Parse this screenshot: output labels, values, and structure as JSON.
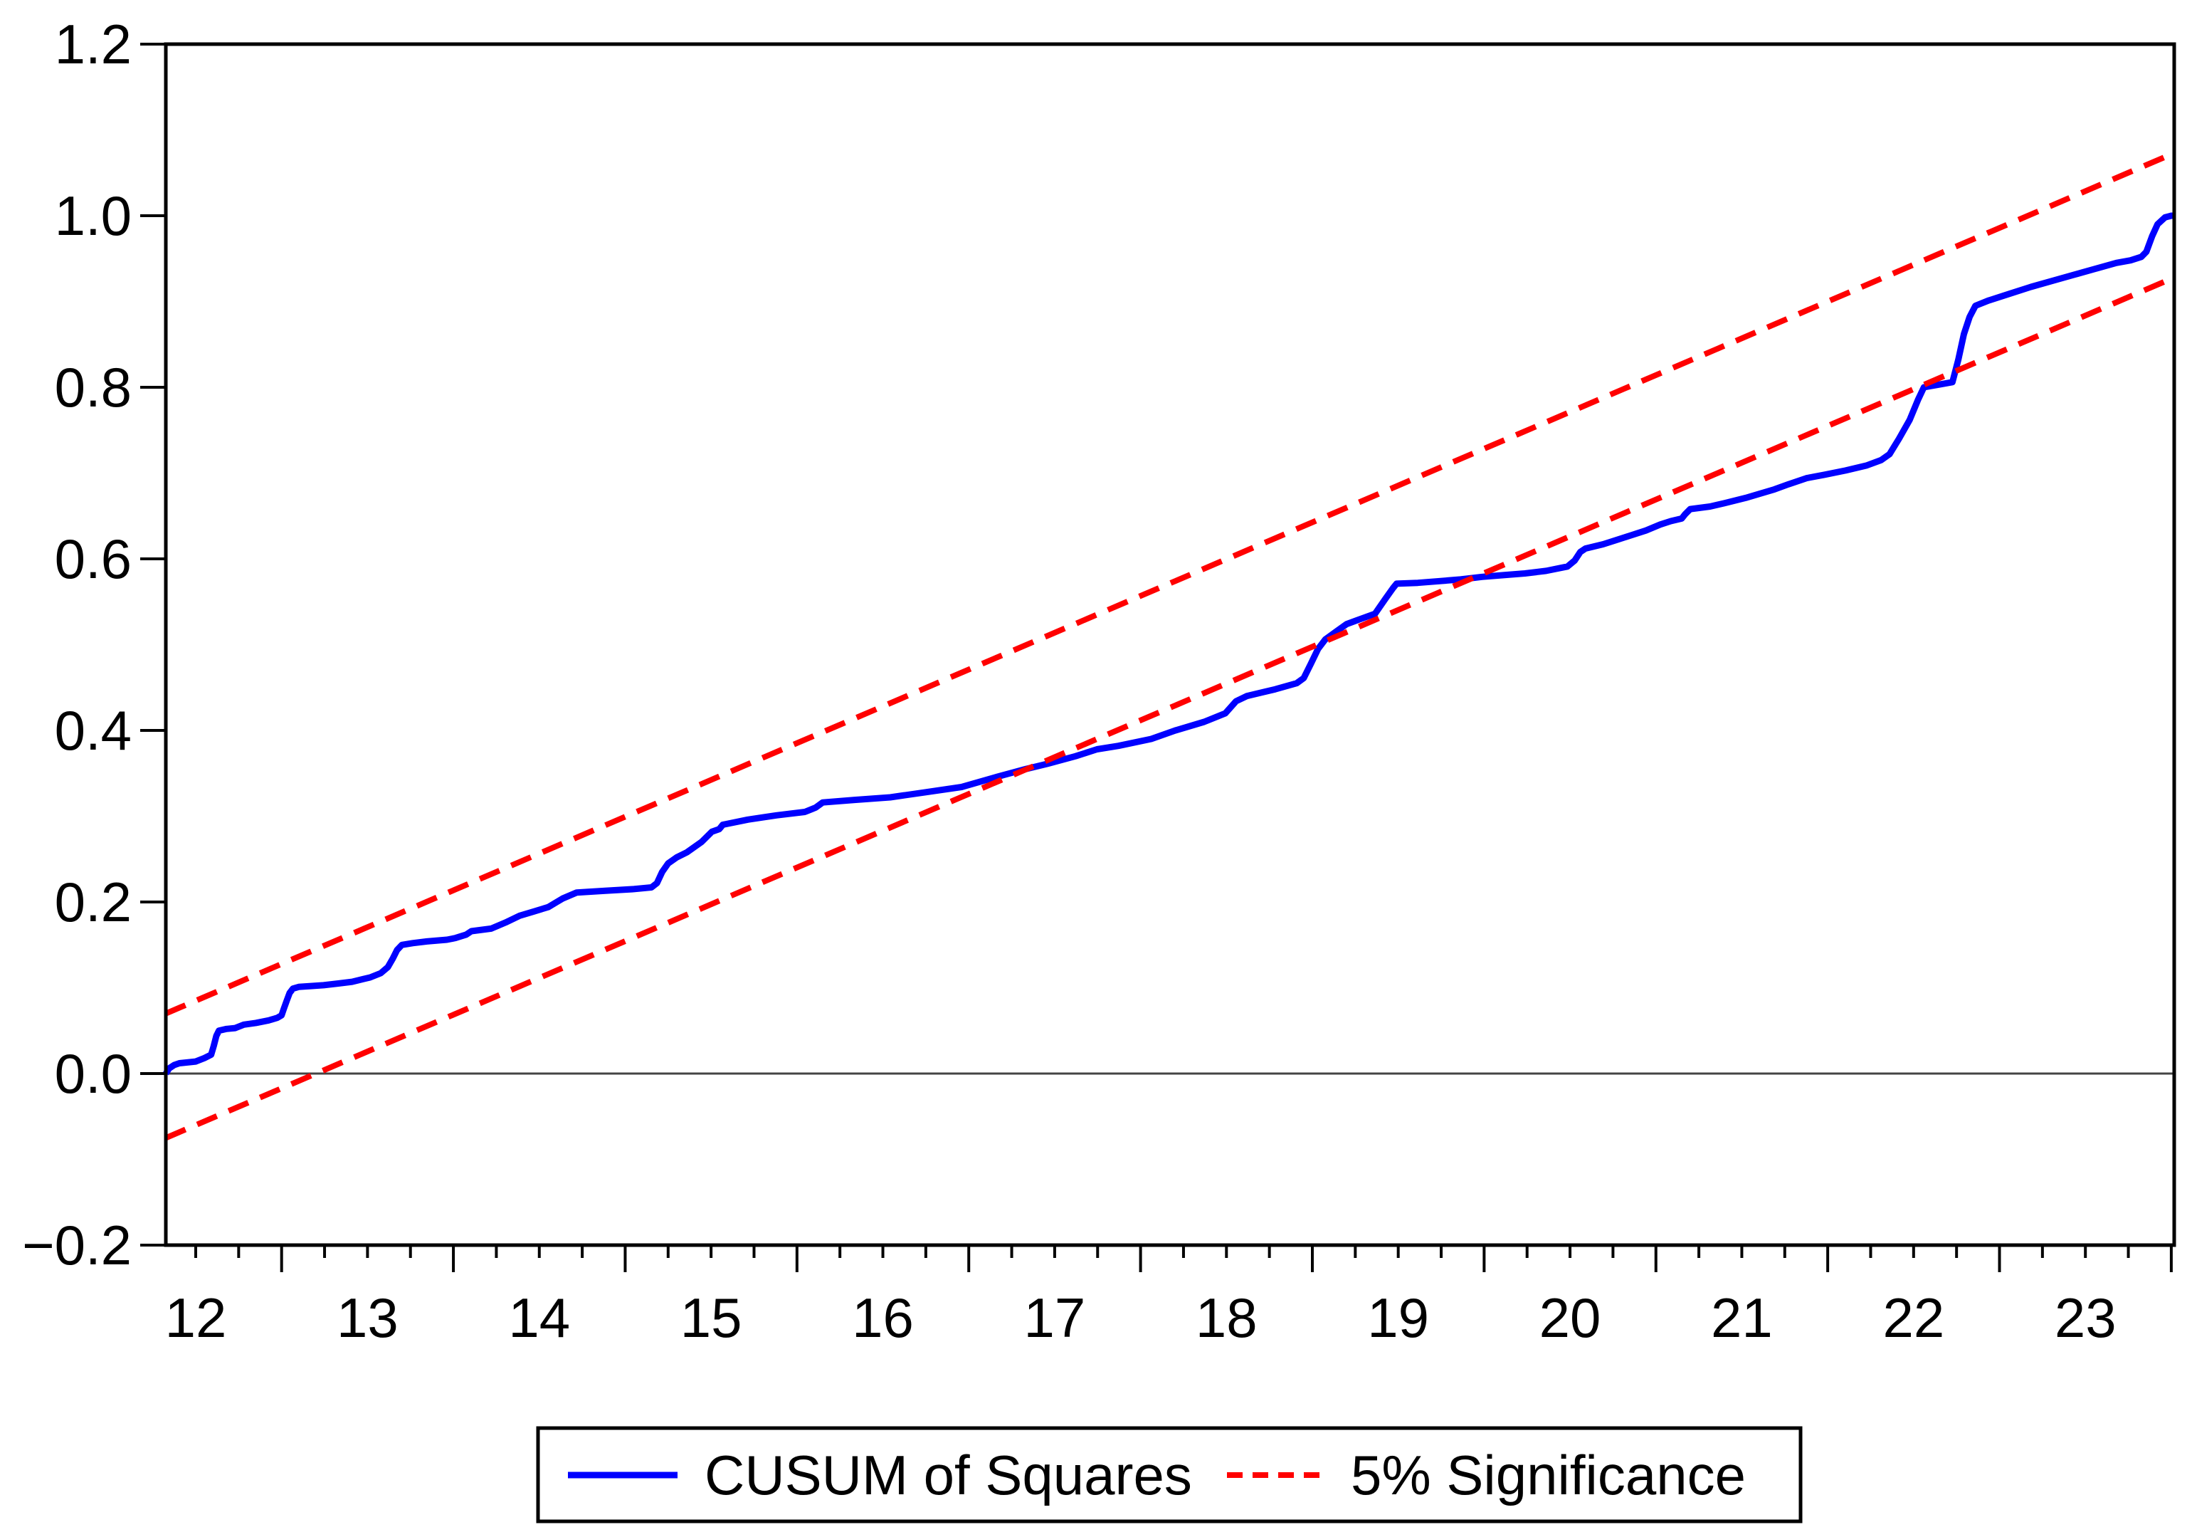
{
  "figure": {
    "background": "#ffffff",
    "border_color": "#000000"
  },
  "chart_data": {
    "type": "line",
    "title": "",
    "xlabel": "",
    "ylabel": "",
    "grid": "off",
    "legend_position": "bottom-outside-boxed",
    "xlim": [
      12.326,
      24.017
    ],
    "ylim": [
      -0.2,
      1.2
    ],
    "zero_line_value": 0.0,
    "y_ticks": [
      {
        "v": 1.2,
        "label": "1.2"
      },
      {
        "v": 1.0,
        "label": "1.0"
      },
      {
        "v": 0.8,
        "label": "0.8"
      },
      {
        "v": 0.6,
        "label": "0.6"
      },
      {
        "v": 0.4,
        "label": "0.4"
      },
      {
        "v": 0.2,
        "label": "0.2"
      },
      {
        "v": 0.0,
        "label": "0.0"
      },
      {
        "v": -0.2,
        "label": "−0.2"
      }
    ],
    "x_major_ticks": [
      13,
      14,
      15,
      16,
      17,
      18,
      19,
      20,
      21,
      22,
      23,
      24
    ],
    "x_minor_ticks": {
      "start": 12.5,
      "end": 23.75,
      "step": 0.25,
      "skip_integers": true
    },
    "x_tick_labels": [
      {
        "t": 12.5,
        "label": "12"
      },
      {
        "t": 13.5,
        "label": "13"
      },
      {
        "t": 14.5,
        "label": "14"
      },
      {
        "t": 15.5,
        "label": "15"
      },
      {
        "t": 16.5,
        "label": "16"
      },
      {
        "t": 17.5,
        "label": "17"
      },
      {
        "t": 18.5,
        "label": "18"
      },
      {
        "t": 19.5,
        "label": "19"
      },
      {
        "t": 20.5,
        "label": "20"
      },
      {
        "t": 21.5,
        "label": "21"
      },
      {
        "t": 22.5,
        "label": "22"
      },
      {
        "t": 23.5,
        "label": "23"
      }
    ],
    "series": [
      {
        "name": "CUSUM of Squares",
        "color": "#0000ff",
        "style": "solid",
        "points": [
          [
            12.326,
            0.0
          ],
          [
            12.345,
            0.006
          ],
          [
            12.375,
            0.01
          ],
          [
            12.405,
            0.012
          ],
          [
            12.5,
            0.014
          ],
          [
            12.55,
            0.018
          ],
          [
            12.59,
            0.022
          ],
          [
            12.605,
            0.032
          ],
          [
            12.62,
            0.044
          ],
          [
            12.635,
            0.05
          ],
          [
            12.68,
            0.052
          ],
          [
            12.73,
            0.053
          ],
          [
            12.78,
            0.057
          ],
          [
            12.85,
            0.059
          ],
          [
            12.925,
            0.062
          ],
          [
            12.975,
            0.065
          ],
          [
            13.0,
            0.068
          ],
          [
            13.012,
            0.075
          ],
          [
            13.03,
            0.085
          ],
          [
            13.047,
            0.094
          ],
          [
            13.066,
            0.099
          ],
          [
            13.1,
            0.101
          ],
          [
            13.17,
            0.102
          ],
          [
            13.245,
            0.103
          ],
          [
            13.33,
            0.105
          ],
          [
            13.41,
            0.107
          ],
          [
            13.473,
            0.11
          ],
          [
            13.515,
            0.112
          ],
          [
            13.577,
            0.117
          ],
          [
            13.618,
            0.124
          ],
          [
            13.647,
            0.134
          ],
          [
            13.672,
            0.144
          ],
          [
            13.7,
            0.15
          ],
          [
            13.763,
            0.152
          ],
          [
            13.846,
            0.154
          ],
          [
            13.963,
            0.156
          ],
          [
            14.012,
            0.158
          ],
          [
            14.075,
            0.162
          ],
          [
            14.105,
            0.166
          ],
          [
            14.22,
            0.169
          ],
          [
            14.303,
            0.176
          ],
          [
            14.386,
            0.184
          ],
          [
            14.469,
            0.189
          ],
          [
            14.552,
            0.194
          ],
          [
            14.635,
            0.204
          ],
          [
            14.718,
            0.211
          ],
          [
            14.884,
            0.213
          ],
          [
            15.05,
            0.215
          ],
          [
            15.153,
            0.217
          ],
          [
            15.185,
            0.222
          ],
          [
            15.215,
            0.235
          ],
          [
            15.25,
            0.245
          ],
          [
            15.3,
            0.252
          ],
          [
            15.36,
            0.258
          ],
          [
            15.445,
            0.27
          ],
          [
            15.505,
            0.282
          ],
          [
            15.548,
            0.285
          ],
          [
            15.568,
            0.29
          ],
          [
            15.714,
            0.296
          ],
          [
            15.88,
            0.301
          ],
          [
            16.046,
            0.305
          ],
          [
            16.108,
            0.31
          ],
          [
            16.15,
            0.316
          ],
          [
            16.336,
            0.319
          ],
          [
            16.543,
            0.322
          ],
          [
            16.75,
            0.328
          ],
          [
            16.958,
            0.334
          ],
          [
            17.166,
            0.346
          ],
          [
            17.332,
            0.355
          ],
          [
            17.456,
            0.361
          ],
          [
            17.622,
            0.37
          ],
          [
            17.747,
            0.378
          ],
          [
            17.871,
            0.382
          ],
          [
            18.062,
            0.39
          ],
          [
            18.203,
            0.4
          ],
          [
            18.37,
            0.41
          ],
          [
            18.494,
            0.42
          ],
          [
            18.556,
            0.434
          ],
          [
            18.618,
            0.44
          ],
          [
            18.784,
            0.448
          ],
          [
            18.909,
            0.455
          ],
          [
            18.95,
            0.461
          ],
          [
            18.992,
            0.478
          ],
          [
            19.033,
            0.495
          ],
          [
            19.075,
            0.506
          ],
          [
            19.137,
            0.515
          ],
          [
            19.2,
            0.524
          ],
          [
            19.282,
            0.53
          ],
          [
            19.365,
            0.536
          ],
          [
            19.427,
            0.554
          ],
          [
            19.47,
            0.566
          ],
          [
            19.49,
            0.571
          ],
          [
            19.614,
            0.572
          ],
          [
            19.74,
            0.574
          ],
          [
            19.863,
            0.576
          ],
          [
            19.988,
            0.579
          ],
          [
            20.112,
            0.581
          ],
          [
            20.237,
            0.583
          ],
          [
            20.361,
            0.586
          ],
          [
            20.485,
            0.591
          ],
          [
            20.527,
            0.598
          ],
          [
            20.56,
            0.608
          ],
          [
            20.59,
            0.612
          ],
          [
            20.693,
            0.617
          ],
          [
            20.817,
            0.625
          ],
          [
            20.942,
            0.633
          ],
          [
            21.025,
            0.64
          ],
          [
            21.087,
            0.644
          ],
          [
            21.15,
            0.647
          ],
          [
            21.17,
            0.652
          ],
          [
            21.2,
            0.658
          ],
          [
            21.315,
            0.661
          ],
          [
            21.4,
            0.665
          ],
          [
            21.522,
            0.671
          ],
          [
            21.606,
            0.676
          ],
          [
            21.69,
            0.681
          ],
          [
            21.772,
            0.687
          ],
          [
            21.876,
            0.694
          ],
          [
            21.98,
            0.698
          ],
          [
            22.104,
            0.703
          ],
          [
            22.228,
            0.709
          ],
          [
            22.31,
            0.715
          ],
          [
            22.36,
            0.722
          ],
          [
            22.415,
            0.74
          ],
          [
            22.477,
            0.762
          ],
          [
            22.527,
            0.786
          ],
          [
            22.56,
            0.8
          ],
          [
            22.643,
            0.803
          ],
          [
            22.726,
            0.806
          ],
          [
            22.76,
            0.832
          ],
          [
            22.793,
            0.862
          ],
          [
            22.826,
            0.882
          ],
          [
            22.86,
            0.895
          ],
          [
            22.934,
            0.901
          ],
          [
            23.058,
            0.909
          ],
          [
            23.183,
            0.917
          ],
          [
            23.307,
            0.924
          ],
          [
            23.432,
            0.931
          ],
          [
            23.556,
            0.938
          ],
          [
            23.68,
            0.945
          ],
          [
            23.763,
            0.948
          ],
          [
            23.826,
            0.952
          ],
          [
            23.855,
            0.958
          ],
          [
            23.888,
            0.976
          ],
          [
            23.92,
            0.99
          ],
          [
            23.963,
            0.998
          ],
          [
            24.0,
            1.0
          ],
          [
            24.017,
            1.0
          ]
        ]
      },
      {
        "name": "5% Significance upper bound",
        "color": "#ff0000",
        "style": "dashed",
        "points": [
          [
            12.326,
            0.07
          ],
          [
            24.017,
            1.073
          ]
        ]
      },
      {
        "name": "5% Significance lower bound",
        "color": "#ff0000",
        "style": "dashed",
        "points": [
          [
            12.326,
            -0.075
          ],
          [
            24.017,
            0.928
          ]
        ]
      }
    ]
  },
  "legend": {
    "entries": [
      {
        "label": "CUSUM of Squares",
        "color": "#0000ff",
        "style": "solid"
      },
      {
        "label": "5% Significance",
        "color": "#ff0000",
        "style": "dashed"
      }
    ]
  }
}
